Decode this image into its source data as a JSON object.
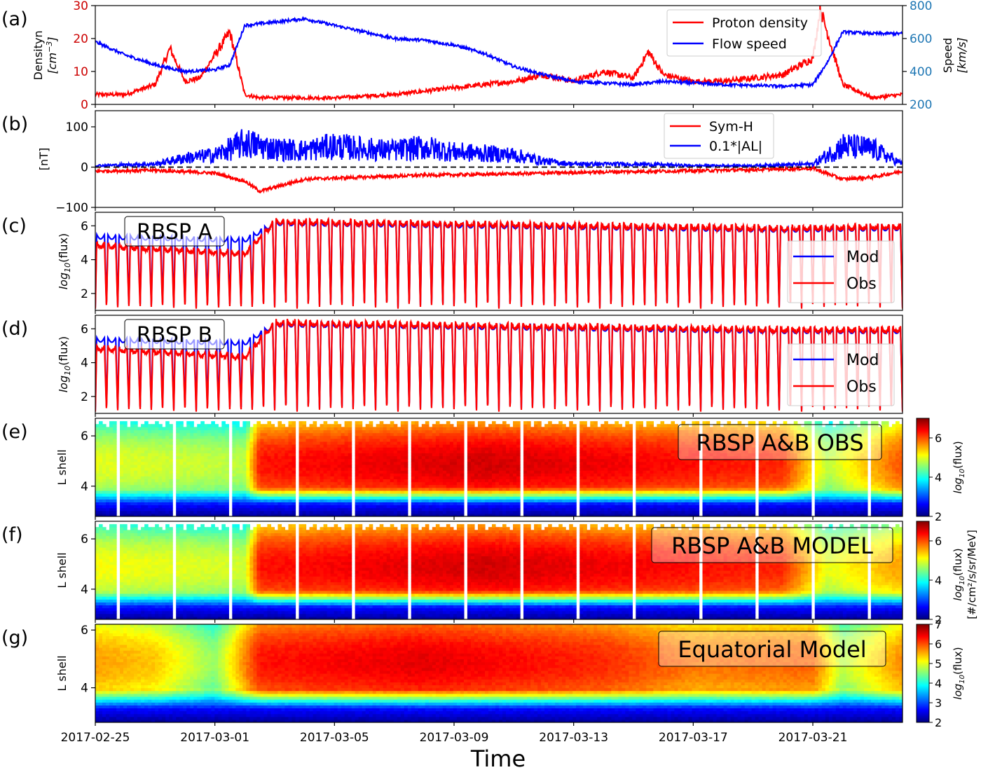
{
  "figure": {
    "xlabel": "Time",
    "xticks": [
      "2017-02-25",
      "2017-03-01",
      "2017-03-05",
      "2017-03-09",
      "2017-03-13",
      "2017-03-17",
      "2017-03-21"
    ],
    "time_range": [
      "2017-02-25",
      "2017-03-24"
    ]
  },
  "chart_data": [
    {
      "panel": "(a)",
      "type": "line",
      "ylabel": "Densityn [cm^-3]",
      "ylabel_line1": "Densityn",
      "ylabel_line2_text": "cm",
      "ylabel_line2_exp": "−3",
      "ylim": [
        0,
        30
      ],
      "yticks": [
        "0",
        "10",
        "20",
        "30"
      ],
      "y2label": "Speed [km/s]",
      "y2label_line1": "Speed",
      "y2label_line2": "km/s",
      "y2lim": [
        200,
        800
      ],
      "y2ticks": [
        "200",
        "400",
        "600",
        "800"
      ],
      "left_axis_color": "#cc0000",
      "right_axis_color": "#1f77b4",
      "legend": [
        "Proton density",
        "Flow speed"
      ],
      "legend_placement": "top-right",
      "series": [
        {
          "name": "Proton density",
          "color": "#ff0000",
          "axis": "left",
          "x": [
            "2017-02-25",
            "2017-02-26",
            "2017-02-27",
            "2017-02-27T12",
            "2017-02-28",
            "2017-02-28T12",
            "2017-03-01",
            "2017-03-01T12",
            "2017-03-02",
            "2017-03-02T12",
            "2017-03-03",
            "2017-03-05",
            "2017-03-07",
            "2017-03-09",
            "2017-03-11",
            "2017-03-12",
            "2017-03-13",
            "2017-03-14",
            "2017-03-15",
            "2017-03-15T12",
            "2017-03-16",
            "2017-03-17",
            "2017-03-18",
            "2017-03-19",
            "2017-03-20",
            "2017-03-21",
            "2017-03-21T06",
            "2017-03-22",
            "2017-03-23",
            "2017-03-24"
          ],
          "values": [
            3,
            3,
            6,
            17,
            7,
            8,
            15,
            22,
            3,
            2,
            2,
            2,
            3,
            5,
            7,
            9,
            7,
            10,
            8,
            16,
            9,
            7,
            7,
            8,
            9,
            14,
            29,
            6,
            2,
            3
          ]
        },
        {
          "name": "Flow speed",
          "color": "#0000ff",
          "axis": "right",
          "x": [
            "2017-02-25",
            "2017-02-26",
            "2017-02-27",
            "2017-02-28",
            "2017-03-01",
            "2017-03-01T12",
            "2017-03-02",
            "2017-03-03",
            "2017-03-04",
            "2017-03-05",
            "2017-03-06",
            "2017-03-07",
            "2017-03-08",
            "2017-03-09",
            "2017-03-10",
            "2017-03-11",
            "2017-03-12",
            "2017-03-13",
            "2017-03-14",
            "2017-03-15",
            "2017-03-16",
            "2017-03-17",
            "2017-03-18",
            "2017-03-19",
            "2017-03-20",
            "2017-03-21",
            "2017-03-21T12",
            "2017-03-22",
            "2017-03-23",
            "2017-03-24"
          ],
          "values": [
            580,
            500,
            440,
            400,
            410,
            440,
            680,
            700,
            720,
            680,
            640,
            600,
            590,
            560,
            510,
            430,
            380,
            340,
            330,
            320,
            340,
            330,
            320,
            315,
            310,
            320,
            460,
            640,
            630,
            630
          ]
        }
      ]
    },
    {
      "panel": "(b)",
      "type": "line",
      "ylabel": "[nT]",
      "ylim": [
        -100,
        140
      ],
      "yticks": [
        "−100",
        "0",
        "100"
      ],
      "reference_line": {
        "y": 0,
        "style": "dashed",
        "color": "#000000"
      },
      "legend": [
        "Sym-H",
        "0.1*|AL|"
      ],
      "legend_placement": "top-right",
      "series": [
        {
          "name": "Sym-H",
          "color": "#ff0000",
          "x": [
            "2017-02-25",
            "2017-02-27",
            "2017-03-01",
            "2017-03-02",
            "2017-03-02T12",
            "2017-03-04",
            "2017-03-06",
            "2017-03-08",
            "2017-03-10",
            "2017-03-12",
            "2017-03-14",
            "2017-03-16",
            "2017-03-18",
            "2017-03-20",
            "2017-03-21",
            "2017-03-22",
            "2017-03-23",
            "2017-03-24"
          ],
          "values": [
            -10,
            -8,
            -15,
            -35,
            -60,
            -30,
            -25,
            -20,
            -18,
            -15,
            -12,
            -10,
            -8,
            -5,
            -3,
            -30,
            -25,
            -10
          ]
        },
        {
          "name": "0.1*|AL|",
          "color": "#0000ff",
          "x": [
            "2017-02-25",
            "2017-02-27",
            "2017-02-28",
            "2017-03-01",
            "2017-03-02",
            "2017-03-03",
            "2017-03-04",
            "2017-03-05",
            "2017-03-06",
            "2017-03-07",
            "2017-03-08",
            "2017-03-09",
            "2017-03-10",
            "2017-03-11",
            "2017-03-12",
            "2017-03-13",
            "2017-03-15",
            "2017-03-17",
            "2017-03-19",
            "2017-03-21",
            "2017-03-22",
            "2017-03-23",
            "2017-03-24"
          ],
          "values": [
            5,
            10,
            30,
            40,
            80,
            60,
            55,
            70,
            60,
            55,
            65,
            50,
            45,
            40,
            20,
            10,
            10,
            5,
            5,
            10,
            70,
            60,
            10
          ]
        }
      ]
    },
    {
      "panel": "(c)",
      "type": "line",
      "ylabel": "log10(flux)",
      "ylim": [
        1,
        6.8
      ],
      "yticks": [
        "2",
        "4",
        "6"
      ],
      "annotation": "RBSP A",
      "legend": [
        "Mod",
        "Obs"
      ],
      "legend_placement": "lower-right",
      "orbit_period_hours": 9,
      "series": [
        {
          "name": "Mod",
          "color": "#0000ff",
          "peak_envelope_x": [
            "2017-02-25",
            "2017-03-02",
            "2017-03-03",
            "2017-03-20",
            "2017-03-24"
          ],
          "peak_envelope_values": [
            5.5,
            5.3,
            6.3,
            5.9,
            6.0
          ],
          "min": 1.2
        },
        {
          "name": "Obs",
          "color": "#ff0000",
          "peak_envelope_x": [
            "2017-02-25",
            "2017-03-02",
            "2017-03-03",
            "2017-03-20",
            "2017-03-24"
          ],
          "peak_envelope_values": [
            5.0,
            4.5,
            6.4,
            6.0,
            6.1
          ],
          "min": 1.1
        }
      ]
    },
    {
      "panel": "(d)",
      "type": "line",
      "ylabel": "log10(flux)",
      "ylim": [
        1,
        6.8
      ],
      "yticks": [
        "2",
        "4",
        "6"
      ],
      "annotation": "RBSP B",
      "legend": [
        "Mod",
        "Obs"
      ],
      "legend_placement": "lower-right",
      "orbit_period_hours": 9,
      "series": [
        {
          "name": "Mod",
          "color": "#0000ff",
          "peak_envelope_x": [
            "2017-02-25",
            "2017-03-02",
            "2017-03-03",
            "2017-03-20",
            "2017-03-24"
          ],
          "peak_envelope_values": [
            5.5,
            5.3,
            6.4,
            6.0,
            6.0
          ],
          "min": 1.2
        },
        {
          "name": "Obs",
          "color": "#ff0000",
          "peak_envelope_x": [
            "2017-02-25",
            "2017-03-02",
            "2017-03-03",
            "2017-03-20",
            "2017-03-24"
          ],
          "peak_envelope_values": [
            5.0,
            4.5,
            6.5,
            6.1,
            6.1
          ],
          "min": 1.1
        }
      ]
    },
    {
      "panel": "(e)",
      "type": "heatmap",
      "ylabel": "L shell",
      "ylim": [
        2.8,
        6.7
      ],
      "yticks": [
        "4",
        "6"
      ],
      "annotation": "RBSP A&B OBS",
      "colorbar": {
        "label": "log10(flux)",
        "range": [
          2,
          7
        ],
        "ticks": [
          "2",
          "4",
          "6"
        ],
        "colormap": "jet"
      },
      "flux_core_x": [
        "2017-02-25",
        "2017-03-02",
        "2017-03-02T12",
        "2017-03-10",
        "2017-03-20",
        "2017-03-21T12",
        "2017-03-24"
      ],
      "flux_core_values": [
        5.0,
        4.8,
        6.3,
        6.6,
        6.2,
        4.8,
        6.0
      ]
    },
    {
      "panel": "(f)",
      "type": "heatmap",
      "ylabel": "L shell",
      "ylim": [
        2.8,
        6.7
      ],
      "yticks": [
        "4",
        "6"
      ],
      "annotation": "RBSP A&B MODEL",
      "colorbar": {
        "label": "log10(flux) [#/cm^2/s/sr/MeV]",
        "range": [
          2,
          7
        ],
        "ticks": [
          "2",
          "4",
          "6"
        ],
        "colormap": "jet",
        "unit_line": "[#/cm²/s/sr/MeV]"
      },
      "flux_core_x": [
        "2017-02-25",
        "2017-03-02",
        "2017-03-02T12",
        "2017-03-10",
        "2017-03-20",
        "2017-03-21T12",
        "2017-03-24"
      ],
      "flux_core_values": [
        5.1,
        4.9,
        6.3,
        6.6,
        6.2,
        5.0,
        5.6
      ]
    },
    {
      "panel": "(g)",
      "type": "heatmap",
      "ylabel": "L shell",
      "ylim": [
        2.8,
        6.2
      ],
      "yticks": [
        "4",
        "6"
      ],
      "annotation": "Equatorial Model",
      "colorbar": {
        "label": "log10(flux)",
        "range": [
          2,
          7
        ],
        "ticks": [
          "2",
          "3",
          "4",
          "5",
          "6",
          "7"
        ],
        "colormap": "jet"
      },
      "flux_core_x": [
        "2017-02-25",
        "2017-02-27",
        "2017-03-01",
        "2017-03-02T12",
        "2017-03-08",
        "2017-03-14",
        "2017-03-17",
        "2017-03-21",
        "2017-03-22",
        "2017-03-24"
      ],
      "flux_core_values": [
        5.6,
        5.4,
        4.6,
        6.3,
        6.5,
        6.2,
        5.8,
        5.9,
        4.8,
        5.7
      ]
    }
  ]
}
